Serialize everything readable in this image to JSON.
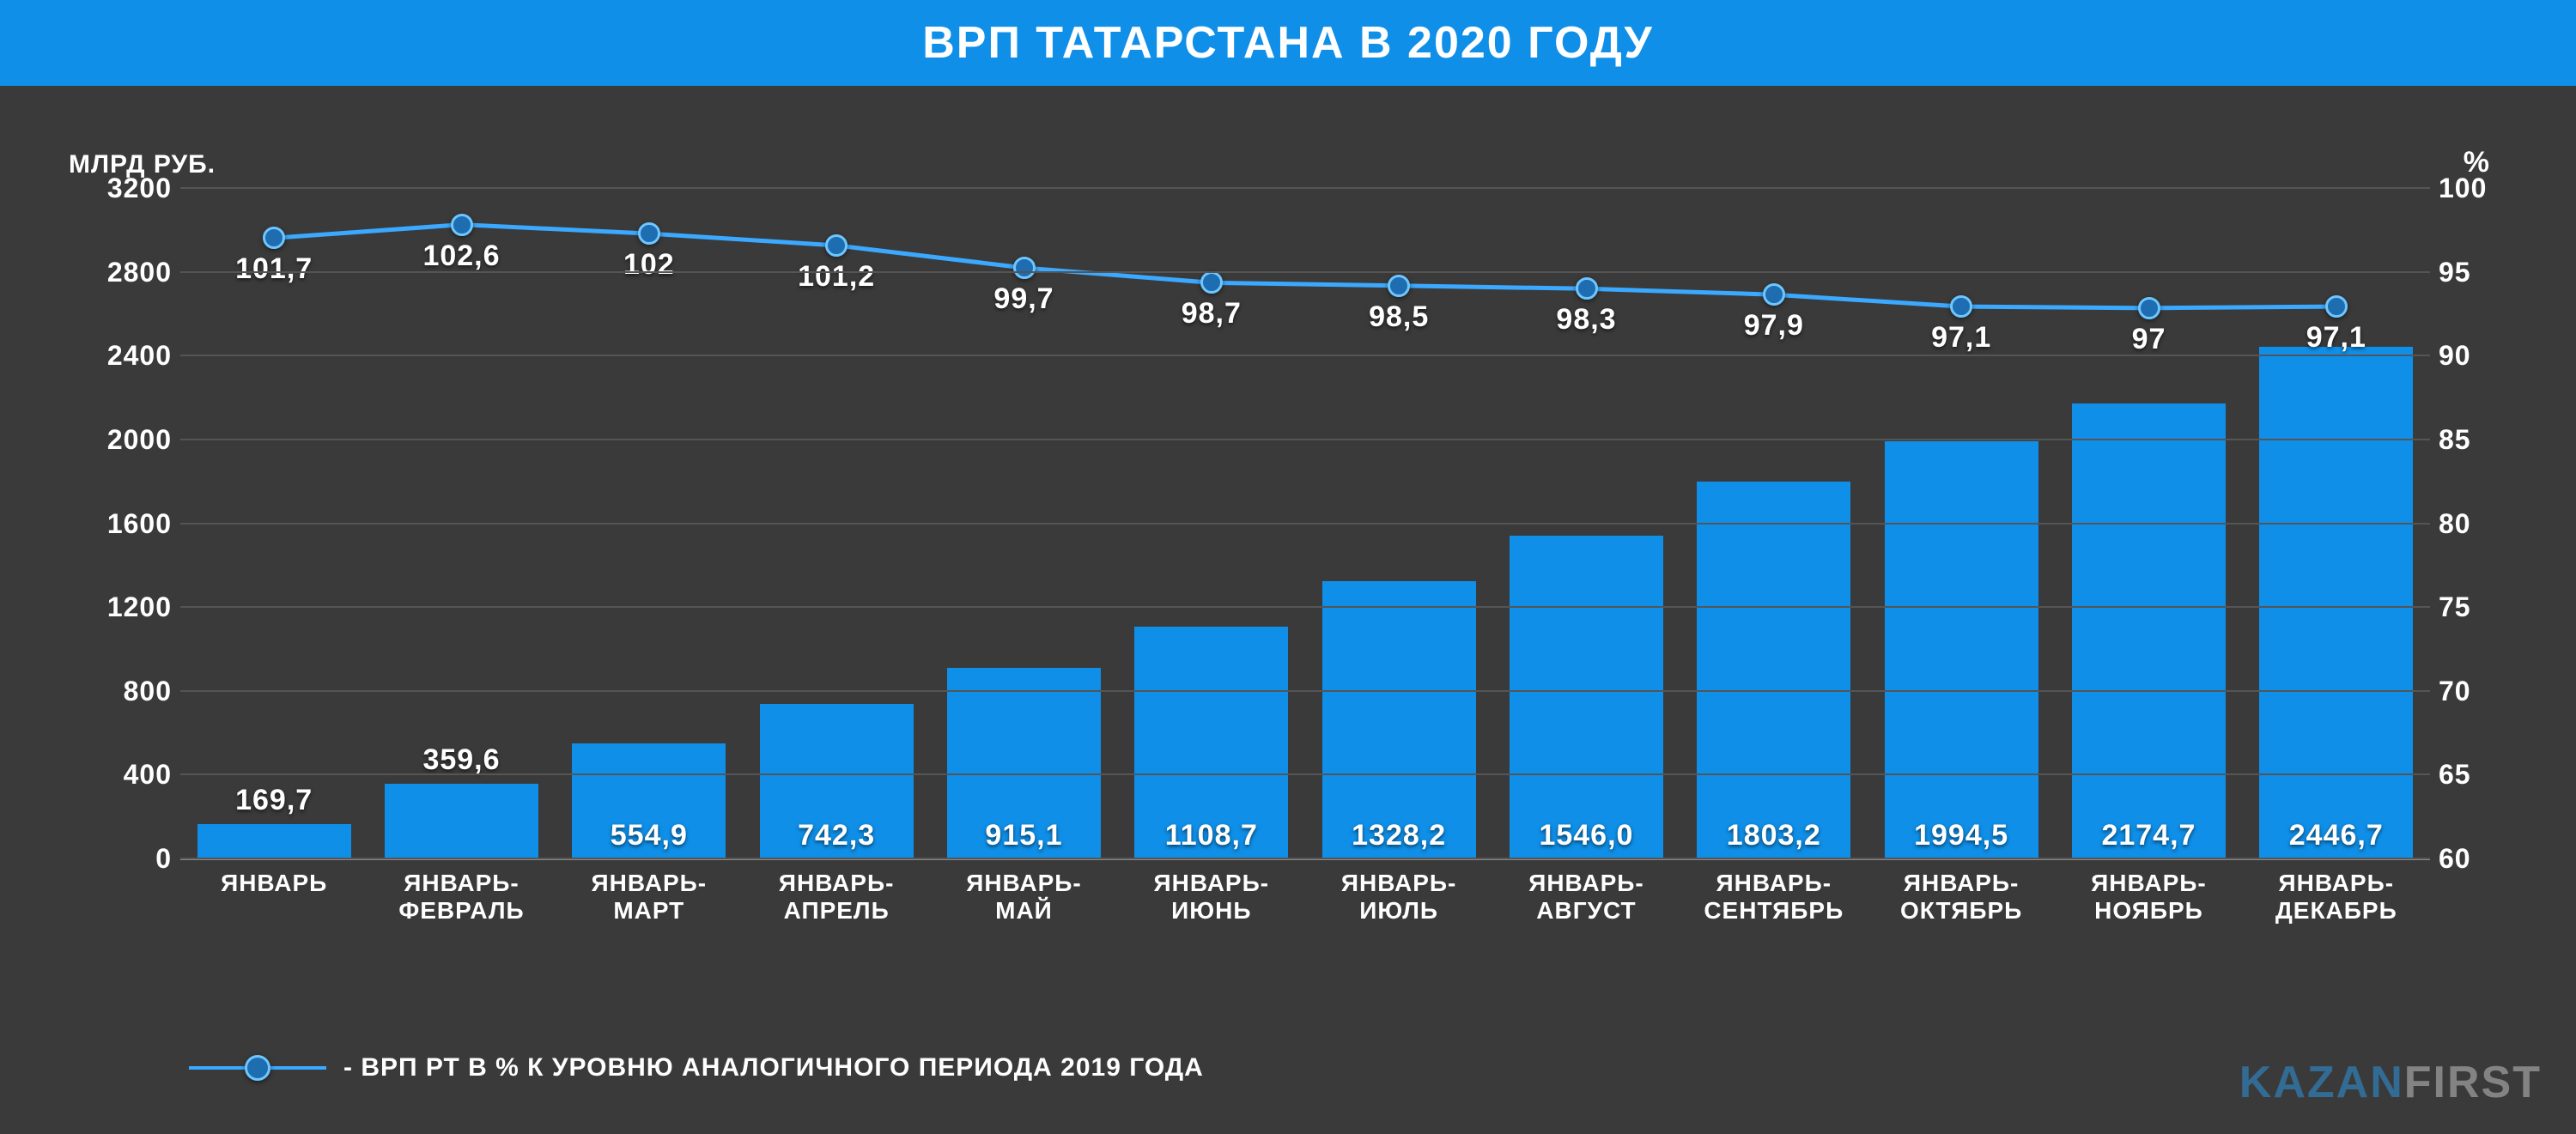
{
  "title": "ВРП ТАТАРСТАНА В 2020 ГОДУ",
  "title_bg": "#0f8fe8",
  "title_color": "#ffffff",
  "title_fontsize": 52,
  "background_color": "#3a3a3a",
  "grid_color": "#555555",
  "baseline_color": "#8a8a8a",
  "text_color": "#ffffff",
  "left_axis": {
    "label": "МЛРД РУБ.",
    "label_fontsize": 30,
    "min": 0,
    "max": 3200,
    "tick_step": 400,
    "tick_fontsize": 32
  },
  "right_axis": {
    "label": "%",
    "label_fontsize": 34,
    "min": 60,
    "max": 100,
    "tick_step": 5,
    "tick_fontsize": 32
  },
  "categories": [
    "ЯНВАРЬ",
    "ЯНВАРЬ-\nФЕВРАЛЬ",
    "ЯНВАРЬ-\nМАРТ",
    "ЯНВАРЬ-\nАПРЕЛЬ",
    "ЯНВАРЬ-\nМАЙ",
    "ЯНВАРЬ-\nИЮНЬ",
    "ЯНВАРЬ-\nИЮЛЬ",
    "ЯНВАРЬ-\nАВГУСТ",
    "ЯНВАРЬ-\nСЕНТЯБРЬ",
    "ЯНВАРЬ-\nОКТЯБРЬ",
    "ЯНВАРЬ-\nНОЯБРЬ",
    "ЯНВАРЬ-\nДЕКАБРЬ"
  ],
  "category_fontsize": 28,
  "bars": {
    "values": [
      169.7,
      359.6,
      554.9,
      742.3,
      915.1,
      1108.7,
      1328.2,
      1546.0,
      1803.2,
      1994.5,
      2174.7,
      2446.7
    ],
    "labels": [
      "169,7",
      "359,6",
      "554,9",
      "742,3",
      "915,1",
      "1108,7",
      "1328,2",
      "1546,0",
      "1803,2",
      "1994,5",
      "2174,7",
      "2446,7"
    ],
    "color": "#0f8fe8",
    "value_fontsize": 34,
    "bar_width_ratio": 0.82
  },
  "line": {
    "values": [
      101.7,
      102.6,
      102.0,
      101.2,
      99.7,
      98.7,
      98.5,
      98.3,
      97.9,
      97.1,
      97.0,
      97.1
    ],
    "labels": [
      "101,7",
      "102,6",
      "102",
      "101,2",
      "99,7",
      "98,7",
      "98,5",
      "98,3",
      "97,9",
      "97,1",
      "97",
      "97,1"
    ],
    "stroke_color": "#3aa9ff",
    "stroke_width": 5,
    "marker_fill": "#1d6db0",
    "marker_stroke": "#6ec6ff",
    "marker_radius": 13,
    "value_fontsize": 34
  },
  "legend": {
    "text": "- ВРП РТ В % К УРОВНЮ АНАЛОГИЧНОГО ПЕРИОДА 2019 ГОДА",
    "fontsize": 30
  },
  "watermark": {
    "part1": "KAZAN",
    "part2": "FIRST",
    "fontsize": 52
  }
}
